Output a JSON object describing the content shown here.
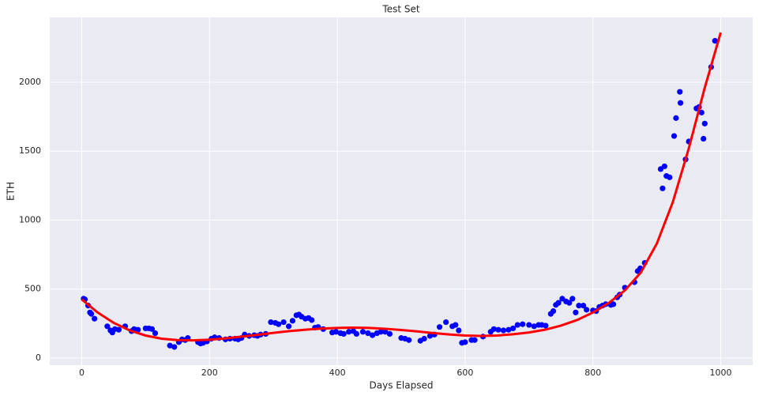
{
  "chart_data": {
    "type": "scatter",
    "title": "Test Set",
    "x_label": "Days Elapsed",
    "y_label": "ETH",
    "xlim": [
      -50,
      1050
    ],
    "ylim": [
      -52,
      2470
    ],
    "xticks": [
      0,
      200,
      400,
      600,
      800,
      1000
    ],
    "yticks": [
      0,
      500,
      1000,
      1500,
      2000
    ],
    "grid": true,
    "background": "#eaeaf2",
    "series": [
      {
        "type": "scatter",
        "color": "#0000ff",
        "x": [
          3,
          5,
          10,
          13,
          15,
          20,
          40,
          45,
          48,
          52,
          58,
          68,
          78,
          82,
          88,
          100,
          105,
          110,
          115,
          138,
          145,
          152,
          157,
          162,
          166,
          182,
          186,
          190,
          196,
          203,
          208,
          215,
          225,
          232,
          240,
          245,
          250,
          255,
          262,
          270,
          275,
          280,
          288,
          296,
          303,
          308,
          316,
          324,
          330,
          336,
          340,
          344,
          350,
          355,
          360,
          365,
          370,
          378,
          392,
          398,
          405,
          410,
          418,
          425,
          430,
          440,
          448,
          455,
          462,
          468,
          475,
          482,
          500,
          506,
          512,
          530,
          536,
          545,
          552,
          560,
          570,
          580,
          585,
          590,
          595,
          600,
          610,
          615,
          628,
          640,
          645,
          652,
          660,
          668,
          675,
          682,
          690,
          700,
          708,
          715,
          720,
          726,
          734,
          738,
          742,
          746,
          752,
          758,
          763,
          768,
          773,
          778,
          785,
          790,
          800,
          805,
          810,
          815,
          820,
          828,
          832,
          838,
          842,
          850,
          865,
          870,
          874,
          881,
          906,
          909,
          912,
          915,
          920,
          927,
          930,
          936,
          937,
          945,
          950,
          962,
          966,
          970,
          973,
          975,
          985,
          991
        ],
        "values": [
          430,
          425,
          380,
          330,
          320,
          285,
          230,
          200,
          185,
          210,
          205,
          230,
          195,
          210,
          205,
          215,
          215,
          210,
          180,
          90,
          80,
          115,
          135,
          130,
          145,
          115,
          105,
          110,
          120,
          140,
          150,
          145,
          135,
          140,
          140,
          135,
          145,
          170,
          160,
          165,
          160,
          170,
          175,
          260,
          255,
          245,
          260,
          230,
          270,
          310,
          315,
          300,
          285,
          290,
          275,
          220,
          225,
          210,
          185,
          190,
          180,
          175,
          190,
          195,
          175,
          190,
          180,
          165,
          180,
          190,
          190,
          175,
          145,
          140,
          130,
          125,
          140,
          160,
          170,
          225,
          260,
          230,
          240,
          200,
          110,
          115,
          130,
          130,
          155,
          190,
          210,
          205,
          200,
          205,
          215,
          240,
          245,
          240,
          230,
          240,
          240,
          235,
          320,
          340,
          385,
          400,
          430,
          410,
          400,
          430,
          330,
          380,
          380,
          350,
          345,
          340,
          370,
          380,
          390,
          385,
          390,
          440,
          460,
          510,
          550,
          630,
          650,
          690,
          1370,
          1230,
          1390,
          1320,
          1310,
          1610,
          1740,
          1930,
          1850,
          1440,
          1570,
          1810,
          1820,
          1780,
          1590,
          1700,
          2110,
          2300
        ]
      },
      {
        "type": "line",
        "color": "#ff0000",
        "x": [
          0,
          25,
          50,
          75,
          100,
          125,
          150,
          175,
          200,
          225,
          250,
          275,
          300,
          325,
          350,
          375,
          400,
          425,
          450,
          475,
          500,
          525,
          550,
          575,
          600,
          625,
          650,
          675,
          700,
          725,
          750,
          775,
          800,
          825,
          850,
          875,
          900,
          925,
          950,
          975,
          1000
        ],
        "values": [
          425,
          330,
          255,
          200,
          163,
          140,
          130,
          128,
          133,
          142,
          155,
          168,
          182,
          195,
          205,
          213,
          218,
          220,
          218,
          212,
          203,
          193,
          181,
          171,
          163,
          160,
          163,
          172,
          185,
          205,
          235,
          275,
          330,
          400,
          490,
          620,
          830,
          1130,
          1520,
          1960,
          2360
        ]
      }
    ]
  }
}
